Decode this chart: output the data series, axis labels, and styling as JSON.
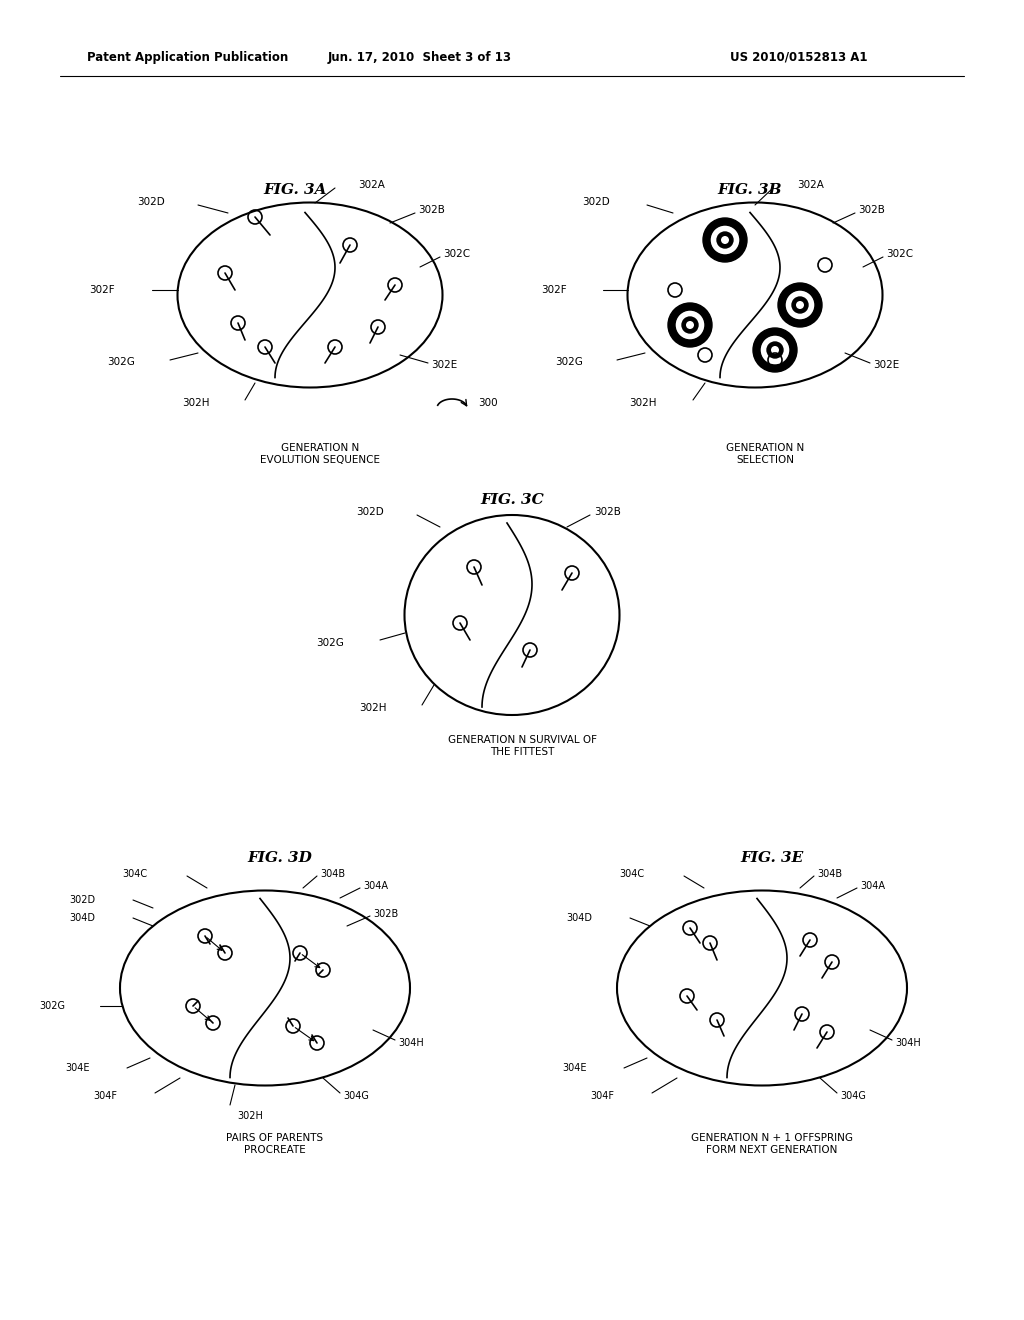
{
  "header_left": "Patent Application Publication",
  "header_mid": "Jun. 17, 2010  Sheet 3 of 13",
  "header_right": "US 2010/0152813 A1",
  "fig3a_title": "FIG. 3A",
  "fig3b_title": "FIG. 3B",
  "fig3c_title": "FIG. 3C",
  "fig3d_title": "FIG. 3D",
  "fig3e_title": "FIG. 3E",
  "fig3a_caption": "GENERATION N\nEVOLUTION SEQUENCE",
  "fig3b_caption": "GENERATION N\nSELECTION",
  "fig3c_caption": "GENERATION N SURVIVAL OF\nTHE FITTEST",
  "fig3d_caption": "PAIRS OF PARENTS\nPROCREATE",
  "fig3e_caption": "GENERATION N + 1 OFFSPRING\nFORM NEXT GENERATION",
  "bg_color": "#ffffff",
  "line_color": "#000000"
}
